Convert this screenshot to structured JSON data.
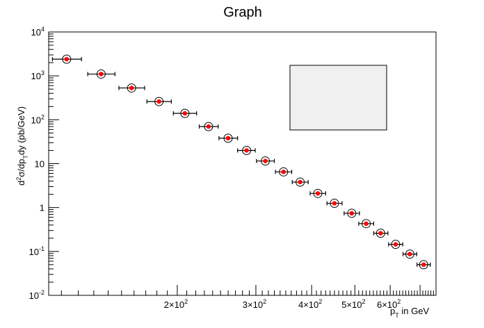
{
  "chart_data": {
    "type": "scatter",
    "title": "Graph",
    "xlabel": "p_T in GeV",
    "ylabel": "d^2σ/dp_T dy (pb/GeV)",
    "x_scale": "log",
    "y_scale": "log",
    "xlim": [
      103,
      760
    ],
    "ylim": [
      0.01,
      10000
    ],
    "grid": false,
    "legend": "empty box, upper-right",
    "colors": {
      "marker_fill": "#ff0000",
      "marker_edge": "#000000",
      "axis": "#000000",
      "legend_fill": "#f0f0f0"
    },
    "x_ticks": [
      {
        "value": 200,
        "mantissa": "2",
        "exponent": "2"
      },
      {
        "value": 300,
        "mantissa": "3",
        "exponent": "2"
      },
      {
        "value": 400,
        "mantissa": "4",
        "exponent": "2"
      },
      {
        "value": 500,
        "mantissa": "5",
        "exponent": "2"
      },
      {
        "value": 600,
        "mantissa": "6",
        "exponent": "2"
      }
    ],
    "y_ticks": [
      {
        "value": 0.01,
        "base": "10",
        "exponent": "-2"
      },
      {
        "value": 0.1,
        "base": "10",
        "exponent": "-1"
      },
      {
        "value": 1,
        "base": "1",
        "exponent": ""
      },
      {
        "value": 10,
        "base": "10",
        "exponent": ""
      },
      {
        "value": 100,
        "base": "10",
        "exponent": "2"
      },
      {
        "value": 1000,
        "base": "10",
        "exponent": "3"
      },
      {
        "value": 10000,
        "base": "10",
        "exponent": "4"
      }
    ],
    "points": [
      {
        "x": 113,
        "y": 2400,
        "xlow": 105,
        "xhigh": 122
      },
      {
        "x": 135,
        "y": 1100,
        "xlow": 126,
        "xhigh": 145
      },
      {
        "x": 158,
        "y": 530,
        "xlow": 148,
        "xhigh": 169
      },
      {
        "x": 182,
        "y": 260,
        "xlow": 171,
        "xhigh": 194
      },
      {
        "x": 208,
        "y": 140,
        "xlow": 196,
        "xhigh": 221
      },
      {
        "x": 235,
        "y": 70,
        "xlow": 224,
        "xhigh": 247
      },
      {
        "x": 260,
        "y": 38,
        "xlow": 248,
        "xhigh": 273
      },
      {
        "x": 286,
        "y": 20,
        "xlow": 273,
        "xhigh": 299
      },
      {
        "x": 315,
        "y": 11.5,
        "xlow": 301,
        "xhigh": 330
      },
      {
        "x": 346,
        "y": 6.5,
        "xlow": 332,
        "xhigh": 361
      },
      {
        "x": 377,
        "y": 3.8,
        "xlow": 362,
        "xhigh": 393
      },
      {
        "x": 413,
        "y": 2.1,
        "xlow": 397,
        "xhigh": 430
      },
      {
        "x": 450,
        "y": 1.25,
        "xlow": 433,
        "xhigh": 468
      },
      {
        "x": 492,
        "y": 0.74,
        "xlow": 473,
        "xhigh": 512
      },
      {
        "x": 530,
        "y": 0.43,
        "xlow": 510,
        "xhigh": 551
      },
      {
        "x": 571,
        "y": 0.26,
        "xlow": 551,
        "xhigh": 593
      },
      {
        "x": 617,
        "y": 0.145,
        "xlow": 595,
        "xhigh": 640
      },
      {
        "x": 664,
        "y": 0.087,
        "xlow": 641,
        "xhigh": 688
      },
      {
        "x": 713,
        "y": 0.05,
        "xlow": 689,
        "xhigh": 738
      }
    ]
  }
}
